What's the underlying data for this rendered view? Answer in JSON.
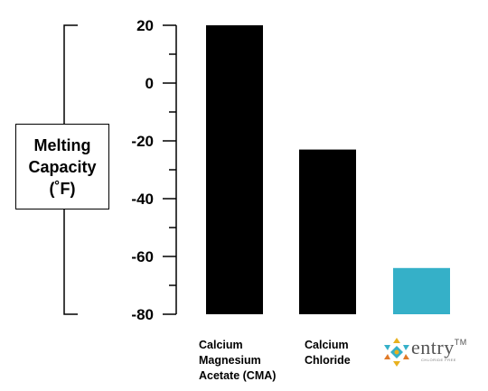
{
  "chart_data": {
    "type": "bar",
    "ylabel_lines": [
      "Melting",
      "Capacity",
      "(˚F)"
    ],
    "yticks": [
      20,
      0,
      -20,
      -40,
      -60,
      -80
    ],
    "ylim": [
      -80,
      20
    ],
    "categories": [
      {
        "lines": [
          "Calcium",
          "Magnesium",
          "Acetate (CMA)"
        ]
      },
      {
        "lines": [
          "Calcium",
          "Chloride"
        ]
      },
      {
        "logo_text": "entry",
        "logo_tm": "TM",
        "logo_sub": "CHLORIDE FREE"
      }
    ],
    "values": [
      20,
      -23,
      -64
    ],
    "colors": [
      "#000000",
      "#000000",
      "#35b0c8"
    ],
    "grid": false
  }
}
